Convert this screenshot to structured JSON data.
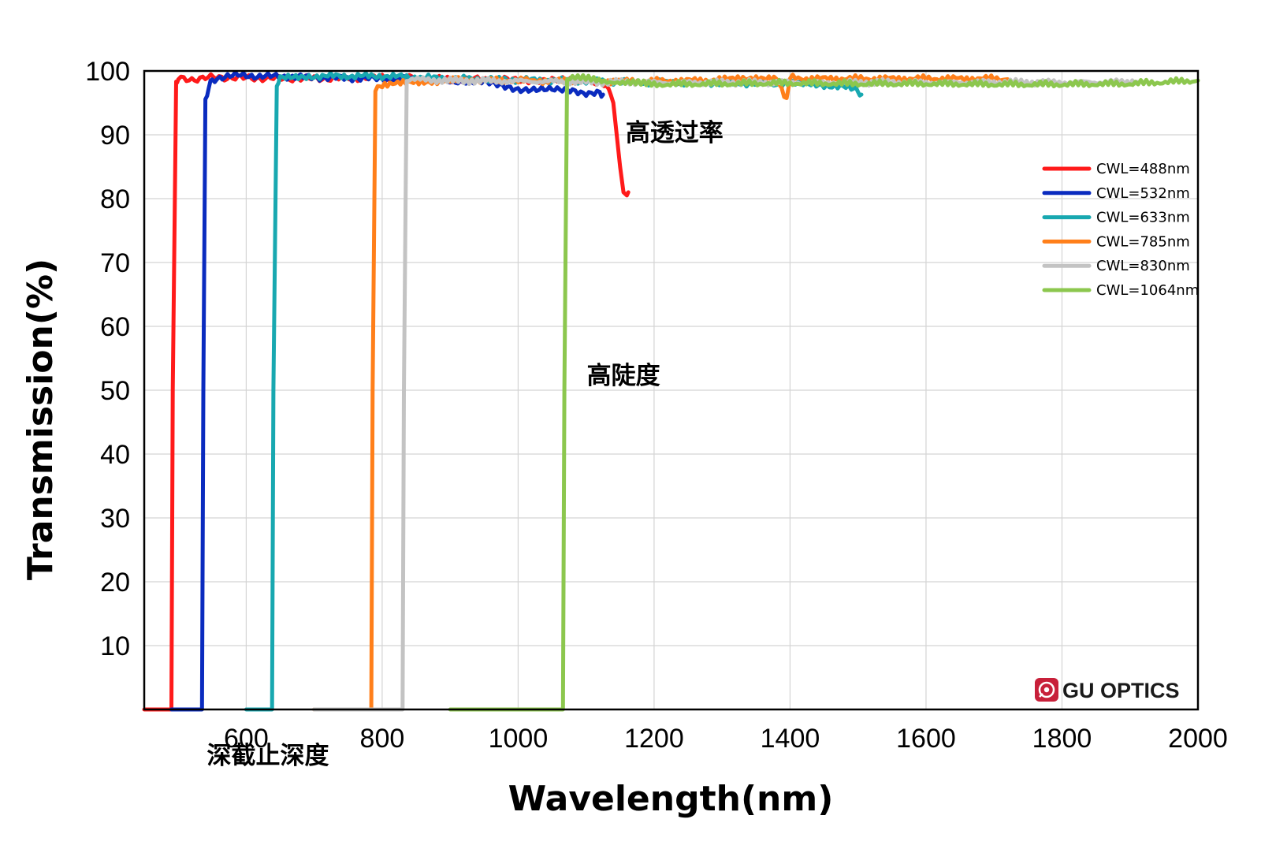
{
  "chart_data": {
    "type": "line",
    "title": "",
    "xlabel": "Wavelength(nm)",
    "ylabel": "Transmission(%)",
    "xlim": [
      450,
      2000
    ],
    "ylim": [
      0,
      100
    ],
    "xticks": [
      600,
      800,
      1000,
      1200,
      1400,
      1600,
      1800,
      2000
    ],
    "yticks": [
      10,
      20,
      30,
      40,
      50,
      60,
      70,
      80,
      90,
      100
    ],
    "grid": true,
    "legend_position": "top-right",
    "series": [
      {
        "name": "CWL=488nm",
        "color": "#ff1a1a",
        "x": [
          450,
          490,
          492,
          497,
          500,
          520,
          540,
          560,
          600,
          700,
          800,
          900,
          1000,
          1050,
          1100,
          1130,
          1140,
          1145,
          1150,
          1155,
          1160,
          1162
        ],
        "y": [
          0,
          0,
          50,
          98.5,
          98.8,
          98.7,
          98.9,
          99.0,
          98.9,
          98.8,
          99.0,
          98.7,
          98.6,
          98.5,
          98.6,
          98.0,
          95.0,
          90.0,
          85.0,
          81.0,
          80.5,
          81.0
        ]
      },
      {
        "name": "CWL=532nm",
        "color": "#0a2bbf",
        "x": [
          490,
          535,
          537,
          540,
          545,
          550,
          580,
          620,
          700,
          800,
          900,
          950,
          1000,
          1050,
          1080,
          1100,
          1120,
          1125
        ],
        "y": [
          0,
          0,
          50,
          95.5,
          97.5,
          98.5,
          99.3,
          99.2,
          99.0,
          98.8,
          98.5,
          98.2,
          97.2,
          97.0,
          96.8,
          96.6,
          96.5,
          96.3
        ]
      },
      {
        "name": "CWL=633nm",
        "color": "#18a8b0",
        "x": [
          600,
          638,
          640,
          645,
          650,
          700,
          800,
          900,
          1000,
          1100,
          1200,
          1300,
          1400,
          1450,
          1490,
          1500,
          1505
        ],
        "y": [
          0,
          0,
          50,
          98.0,
          98.8,
          99.2,
          99.2,
          98.8,
          98.6,
          98.4,
          98.2,
          98.1,
          98.0,
          97.8,
          97.3,
          96.8,
          96.3
        ]
      },
      {
        "name": "CWL=785nm",
        "color": "#ff7f1a",
        "x": [
          700,
          784,
          786,
          790,
          800,
          850,
          900,
          1000,
          1100,
          1200,
          1300,
          1350,
          1380,
          1395,
          1400,
          1420,
          1500,
          1600,
          1700,
          1720
        ],
        "y": [
          0,
          0,
          50,
          97.0,
          97.8,
          98.2,
          98.6,
          98.5,
          98.4,
          98.4,
          98.6,
          99.0,
          99.0,
          95.5,
          99.0,
          98.8,
          98.8,
          98.8,
          98.8,
          98.7
        ]
      },
      {
        "name": "CWL=830nm",
        "color": "#c3c3c3",
        "x": [
          700,
          830,
          832,
          836,
          840,
          900,
          1000,
          1100,
          1200,
          1300,
          1400,
          1500,
          1600,
          1700,
          1800,
          1900,
          1910
        ],
        "y": [
          0,
          0,
          50,
          98.5,
          98.7,
          98.5,
          98.4,
          98.3,
          98.2,
          98.2,
          98.2,
          98.2,
          98.2,
          98.2,
          98.2,
          98.3,
          98.3
        ]
      },
      {
        "name": "CWL=1064nm",
        "color": "#8cc74e",
        "x": [
          900,
          1066,
          1068,
          1072,
          1080,
          1150,
          1200,
          1300,
          1400,
          1500,
          1600,
          1700,
          1800,
          1900,
          2000
        ],
        "y": [
          0,
          0,
          50,
          98.8,
          99.0,
          98.2,
          97.9,
          98.0,
          98.1,
          98.0,
          98.0,
          97.9,
          97.9,
          98.0,
          98.5
        ]
      }
    ],
    "annotations": [
      {
        "text": "高透过率",
        "x": 1230,
        "y": 89
      },
      {
        "text": "高陡度",
        "x": 1155,
        "y": 51
      },
      {
        "text": "深截止深度",
        "x": 632,
        "y": -8.5
      }
    ]
  },
  "logo": {
    "text": "GU OPTICS",
    "icon": "gu-optics-logo-icon",
    "color": "#c8203a"
  }
}
